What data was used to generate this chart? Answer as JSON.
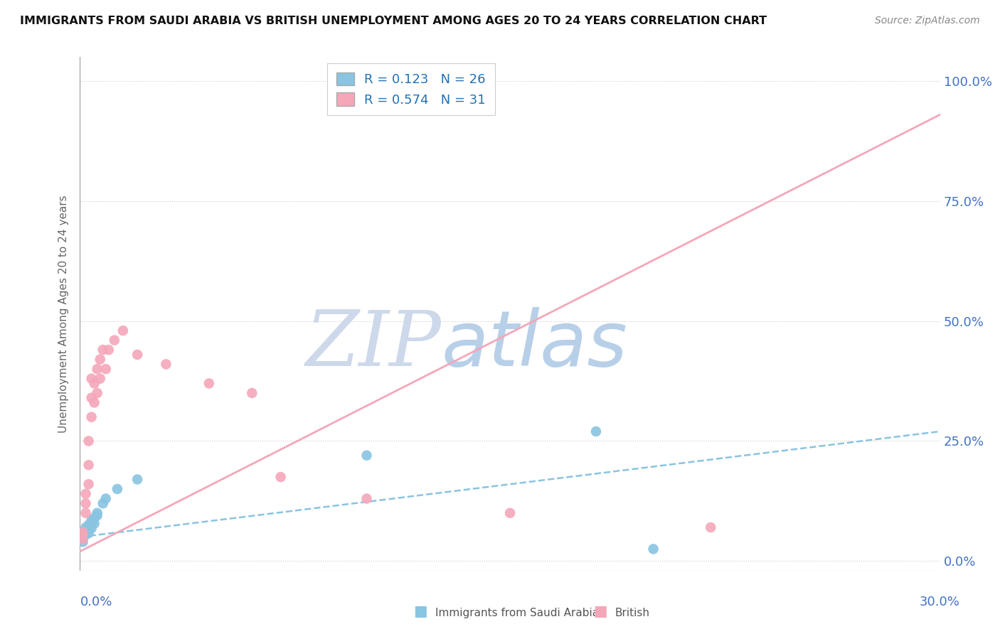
{
  "title": "IMMIGRANTS FROM SAUDI ARABIA VS BRITISH UNEMPLOYMENT AMONG AGES 20 TO 24 YEARS CORRELATION CHART",
  "source": "Source: ZipAtlas.com",
  "ylabel": "Unemployment Among Ages 20 to 24 years",
  "legend1_label": "Immigrants from Saudi Arabia",
  "legend2_label": "British",
  "R1": 0.123,
  "N1": 26,
  "R2": 0.574,
  "N2": 31,
  "color_blue": "#89c4e1",
  "color_pink": "#f4a7b9",
  "color_line_blue": "#89c4e1",
  "color_line_pink": "#f4a7b9",
  "color_text_blue": "#2171b5",
  "color_axis_blue": "#4472c4",
  "scatter_blue": [
    [
      0.001,
      0.05
    ],
    [
      0.001,
      0.06
    ],
    [
      0.001,
      0.04
    ],
    [
      0.001,
      0.045
    ],
    [
      0.002,
      0.055
    ],
    [
      0.002,
      0.065
    ],
    [
      0.002,
      0.07
    ],
    [
      0.002,
      0.06
    ],
    [
      0.003,
      0.075
    ],
    [
      0.003,
      0.065
    ],
    [
      0.003,
      0.058
    ],
    [
      0.003,
      0.072
    ],
    [
      0.004,
      0.08
    ],
    [
      0.004,
      0.068
    ],
    [
      0.004,
      0.085
    ],
    [
      0.005,
      0.09
    ],
    [
      0.005,
      0.078
    ],
    [
      0.006,
      0.1
    ],
    [
      0.006,
      0.095
    ],
    [
      0.008,
      0.12
    ],
    [
      0.009,
      0.13
    ],
    [
      0.013,
      0.15
    ],
    [
      0.02,
      0.17
    ],
    [
      0.1,
      0.22
    ],
    [
      0.18,
      0.27
    ],
    [
      0.2,
      0.025
    ]
  ],
  "scatter_pink": [
    [
      0.001,
      0.045
    ],
    [
      0.001,
      0.055
    ],
    [
      0.001,
      0.06
    ],
    [
      0.002,
      0.1
    ],
    [
      0.002,
      0.12
    ],
    [
      0.002,
      0.14
    ],
    [
      0.003,
      0.16
    ],
    [
      0.003,
      0.2
    ],
    [
      0.003,
      0.25
    ],
    [
      0.004,
      0.3
    ],
    [
      0.004,
      0.34
    ],
    [
      0.004,
      0.38
    ],
    [
      0.005,
      0.33
    ],
    [
      0.005,
      0.37
    ],
    [
      0.006,
      0.35
    ],
    [
      0.006,
      0.4
    ],
    [
      0.007,
      0.38
    ],
    [
      0.007,
      0.42
    ],
    [
      0.008,
      0.44
    ],
    [
      0.009,
      0.4
    ],
    [
      0.01,
      0.44
    ],
    [
      0.012,
      0.46
    ],
    [
      0.015,
      0.48
    ],
    [
      0.02,
      0.43
    ],
    [
      0.03,
      0.41
    ],
    [
      0.045,
      0.37
    ],
    [
      0.06,
      0.35
    ],
    [
      0.07,
      0.175
    ],
    [
      0.1,
      0.13
    ],
    [
      0.15,
      0.1
    ],
    [
      0.22,
      0.07
    ]
  ],
  "xlim": [
    0.0,
    0.3
  ],
  "ylim": [
    -0.02,
    1.05
  ],
  "yticks": [
    0.0,
    0.25,
    0.5,
    0.75,
    1.0
  ],
  "xticks_hidden": true,
  "background_color": "#ffffff",
  "watermark_zip": "ZIP",
  "watermark_atlas": "atlas",
  "watermark_color": "#cdd9ea"
}
